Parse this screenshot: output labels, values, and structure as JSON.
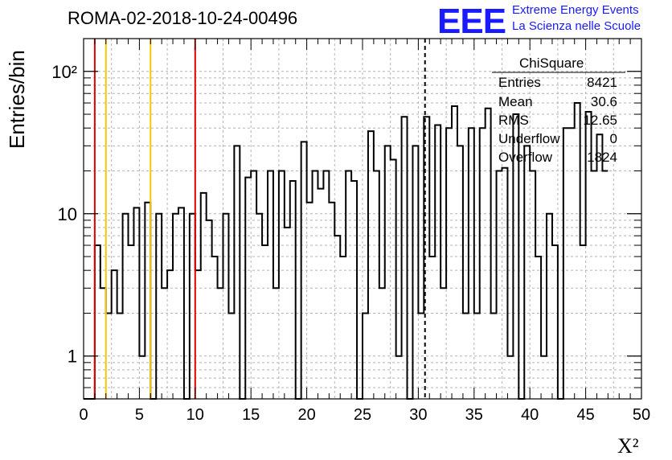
{
  "header": {
    "title": "ROMA-02-2018-10-24-00496",
    "logo_text": "EEE",
    "logo_line1": "Extreme Energy Events",
    "logo_line2": "La Scienza nelle Scuole"
  },
  "stats": {
    "title": "ChiSquare",
    "rows": [
      {
        "label": "Entries",
        "value": "8421"
      },
      {
        "label": "Mean",
        "value": "30.6"
      },
      {
        "label": "RMS",
        "value": "12.65"
      },
      {
        "label": "Underflow",
        "value": "0"
      },
      {
        "label": "Overflow",
        "value": "1824"
      }
    ]
  },
  "chart_data": {
    "type": "bar",
    "style": "step-histogram",
    "xlabel": "X²",
    "ylabel": "Entries/bin",
    "xlim": [
      0,
      50
    ],
    "ylim": [
      0.5,
      170
    ],
    "yscale": "log",
    "grid": true,
    "bin_width": 0.5,
    "x_ticks": [
      "0",
      "5",
      "10",
      "15",
      "20",
      "25",
      "30",
      "35",
      "40",
      "45",
      "50"
    ],
    "y_ticks": [
      {
        "value": 1,
        "label": "1"
      },
      {
        "value": 10,
        "label": "10"
      },
      {
        "value": 100,
        "label": "10²"
      }
    ],
    "values": [
      0,
      0,
      6,
      3,
      2,
      4,
      2,
      10,
      6,
      11,
      1,
      12,
      0,
      10,
      3,
      4,
      10,
      11,
      0,
      10,
      4,
      14,
      9,
      5,
      3,
      10,
      2,
      30,
      0,
      18,
      20,
      10,
      6,
      20,
      3,
      20,
      8,
      17,
      0,
      32,
      12,
      20,
      15,
      20,
      12,
      7,
      5,
      20,
      17,
      0,
      2,
      38,
      20,
      3,
      30,
      24,
      1,
      48,
      0,
      30,
      2,
      48,
      5,
      42,
      3,
      40,
      57,
      30,
      2,
      40,
      2,
      40,
      55,
      2,
      20,
      21,
      1,
      50,
      0,
      30,
      20,
      5,
      1,
      10,
      6,
      0,
      40,
      40,
      60,
      6,
      52,
      20,
      36,
      20
    ],
    "vertical_lines": [
      {
        "x": 1,
        "color": "#dd0000",
        "style": "solid"
      },
      {
        "x": 2,
        "color": "#f5c800",
        "style": "solid"
      },
      {
        "x": 6,
        "color": "#f5c800",
        "style": "solid"
      },
      {
        "x": 10,
        "color": "#dd0000",
        "style": "solid"
      },
      {
        "x": 30.6,
        "color": "#000000",
        "style": "dashed"
      }
    ],
    "colors": {
      "histogram": "#000000",
      "grid": "#b4b4b4"
    }
  }
}
